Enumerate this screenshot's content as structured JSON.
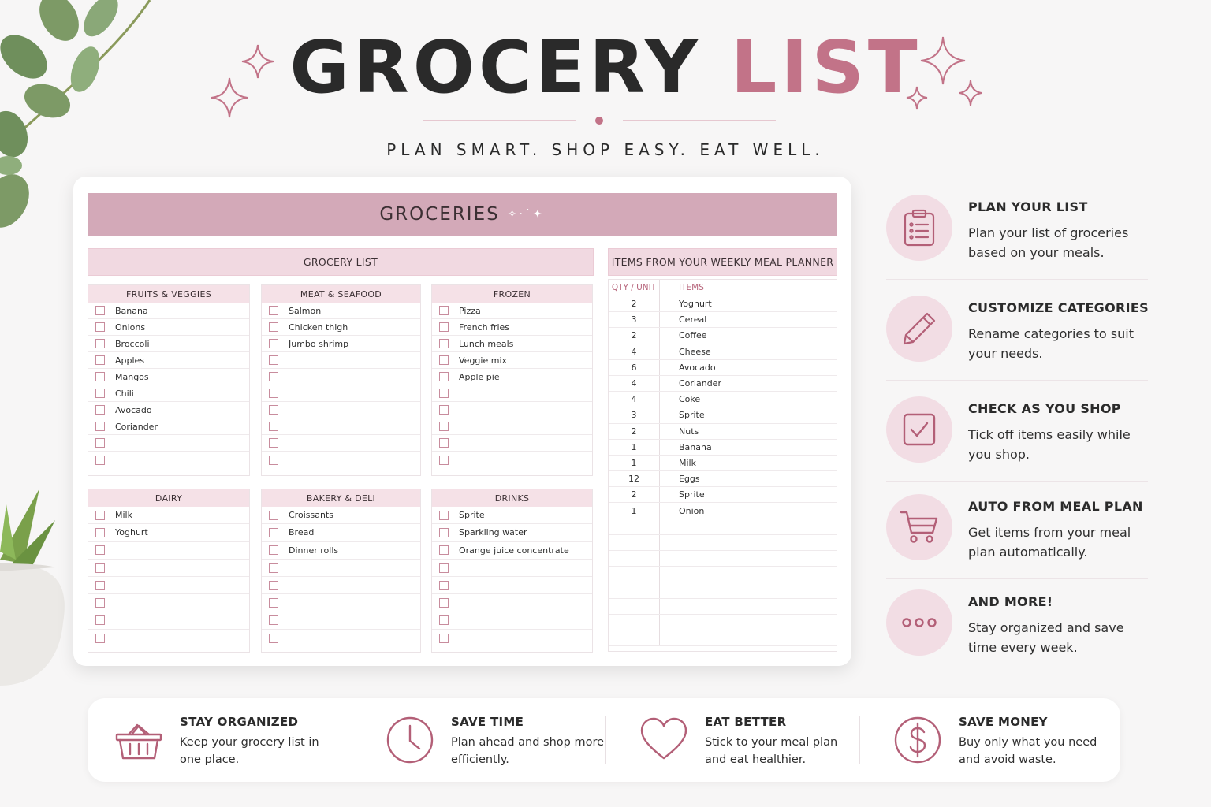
{
  "title": {
    "word1": "GROCERY",
    "word2": "LIST"
  },
  "subtitle": "PLAN SMART. SHOP EASY. EAT WELL.",
  "banner": "GROCERIES",
  "grocery_list_label": "GROCERY LIST",
  "meal_planner_label": "ITEMS FROM YOUR WEEKLY MEAL PLANNER",
  "categories_top": [
    {
      "name": "FRUITS & VEGGIES",
      "items": [
        "Banana",
        "Onions",
        "Broccoli",
        "Apples",
        "Mangos",
        "Chili",
        "Avocado",
        "Coriander",
        "",
        ""
      ]
    },
    {
      "name": "MEAT & SEAFOOD",
      "items": [
        "Salmon",
        "Chicken thigh",
        "Jumbo shrimp",
        "",
        "",
        "",
        "",
        "",
        "",
        ""
      ]
    },
    {
      "name": "FROZEN",
      "items": [
        "Pizza",
        "French fries",
        "Lunch meals",
        "Veggie mix",
        "Apple pie",
        "",
        "",
        "",
        "",
        ""
      ]
    }
  ],
  "categories_bottom": [
    {
      "name": "DAIRY",
      "items": [
        "Milk",
        "Yoghurt",
        "",
        "",
        "",
        "",
        "",
        ""
      ]
    },
    {
      "name": "BAKERY & DELI",
      "items": [
        "Croissants",
        "Bread",
        "Dinner rolls",
        "",
        "",
        "",
        "",
        ""
      ]
    },
    {
      "name": "DRINKS",
      "items": [
        "Sprite",
        "Sparkling water",
        "Orange juice concentrate",
        "",
        "",
        "",
        "",
        ""
      ]
    }
  ],
  "meal_table": {
    "headers": [
      "QTY / UNIT",
      "ITEMS"
    ],
    "rows": [
      [
        "2",
        "Yoghurt"
      ],
      [
        "3",
        "Cereal"
      ],
      [
        "2",
        "Coffee"
      ],
      [
        "4",
        "Cheese"
      ],
      [
        "6",
        "Avocado"
      ],
      [
        "4",
        "Coriander"
      ],
      [
        "4",
        "Coke"
      ],
      [
        "3",
        "Sprite"
      ],
      [
        "2",
        "Nuts"
      ],
      [
        "1",
        "Banana"
      ],
      [
        "1",
        "Milk"
      ],
      [
        "12",
        "Eggs"
      ],
      [
        "2",
        "Sprite"
      ],
      [
        "1",
        "Onion"
      ],
      [
        "",
        ""
      ],
      [
        "",
        ""
      ],
      [
        "",
        ""
      ],
      [
        "",
        ""
      ],
      [
        "",
        ""
      ],
      [
        "",
        ""
      ],
      [
        "",
        ""
      ],
      [
        "",
        ""
      ]
    ]
  },
  "features": [
    {
      "icon": "clipboard-list-icon",
      "title": "PLAN YOUR LIST",
      "desc": "Plan your list of groceries based on your meals."
    },
    {
      "icon": "pencil-icon",
      "title": "CUSTOMIZE CATEGORIES",
      "desc": "Rename categories to suit your needs."
    },
    {
      "icon": "checkbox-icon",
      "title": "CHECK AS YOU SHOP",
      "desc": "Tick off items easily while you shop."
    },
    {
      "icon": "shopping-cart-icon",
      "title": "AUTO FROM MEAL PLAN",
      "desc": "Get items from your meal plan automatically."
    },
    {
      "icon": "more-dots-icon",
      "title": "AND MORE!",
      "desc": "Stay organized and save time every week."
    }
  ],
  "benefits": [
    {
      "icon": "basket-icon",
      "title": "STAY ORGANIZED",
      "desc": "Keep your grocery list in one place."
    },
    {
      "icon": "clock-icon",
      "title": "SAVE TIME",
      "desc": "Plan ahead and shop more efficiently."
    },
    {
      "icon": "heart-icon",
      "title": "EAT BETTER",
      "desc": "Stick to your meal plan and eat healthier."
    },
    {
      "icon": "dollar-icon",
      "title": "SAVE MONEY",
      "desc": "Buy only what you need and avoid waste."
    }
  ],
  "colors": {
    "accent": "#c27388",
    "banner": "#d3a9b8",
    "band": "#f1d9e1",
    "icon_bg": "#f2dde4"
  }
}
